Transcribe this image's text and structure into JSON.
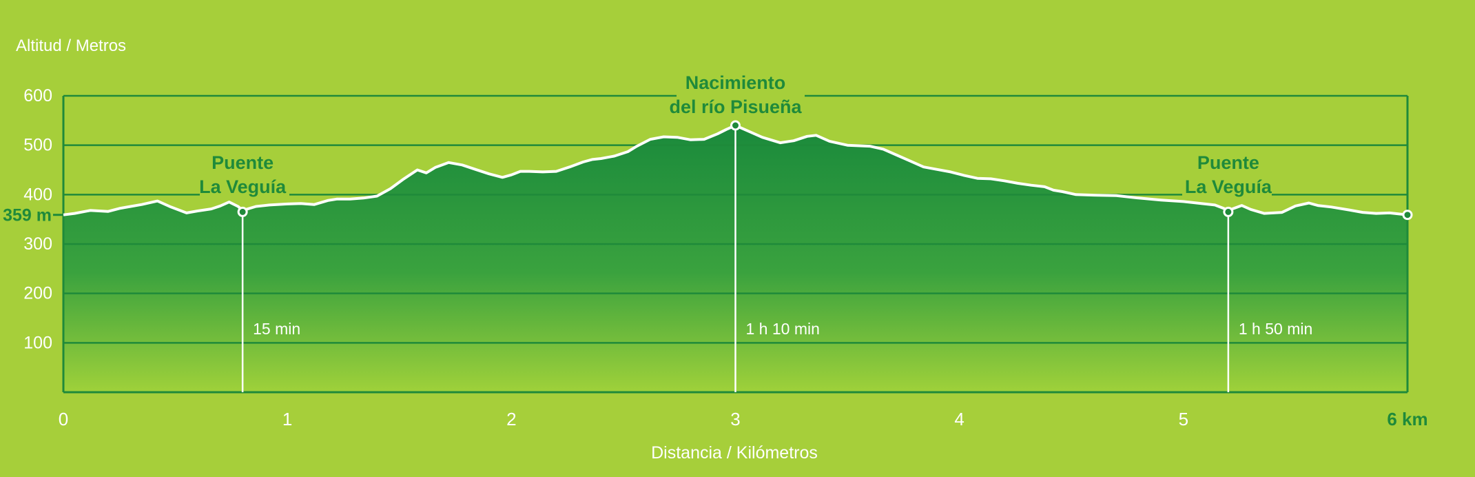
{
  "chart_data": {
    "type": "area",
    "ylabel": "Altitud / Metros",
    "xlabel": "Distancia / Kilómetros",
    "xlim": [
      0,
      6
    ],
    "ylim": [
      0,
      600
    ],
    "x_ticks": [
      "0",
      "1",
      "2",
      "3",
      "4",
      "5",
      "6 km"
    ],
    "y_ticks": [
      "100",
      "200",
      "300",
      "400",
      "500",
      "600"
    ],
    "start_label": "359 m",
    "grid": true,
    "colors": {
      "background": "#a6cf3a",
      "fill_top": "#1a8a3c",
      "fill_bottom": "#9fd13a",
      "grid": "#1f8a3a",
      "profile_line": "#ffffff"
    },
    "profile": {
      "x": [
        0,
        0.05,
        0.12,
        0.2,
        0.25,
        0.3,
        0.35,
        0.42,
        0.48,
        0.55,
        0.6,
        0.66,
        0.7,
        0.74,
        0.78,
        0.8,
        0.86,
        0.92,
        1.0,
        1.06,
        1.12,
        1.18,
        1.22,
        1.28,
        1.34,
        1.4,
        1.46,
        1.52,
        1.58,
        1.62,
        1.66,
        1.72,
        1.78,
        1.84,
        1.9,
        1.96,
        2.0,
        2.04,
        2.08,
        2.14,
        2.2,
        2.26,
        2.32,
        2.36,
        2.4,
        2.46,
        2.52,
        2.56,
        2.62,
        2.68,
        2.74,
        2.8,
        2.86,
        2.92,
        2.96,
        3.0,
        3.06,
        3.12,
        3.2,
        3.26,
        3.32,
        3.36,
        3.42,
        3.5,
        3.6,
        3.66,
        3.72,
        3.78,
        3.84,
        3.9,
        3.96,
        4.02,
        4.08,
        4.14,
        4.2,
        4.26,
        4.32,
        4.38,
        4.42,
        4.46,
        4.52,
        4.6,
        4.7,
        4.8,
        4.9,
        5.0,
        5.08,
        5.14,
        5.18,
        5.2,
        5.26,
        5.3,
        5.36,
        5.44,
        5.5,
        5.56,
        5.6,
        5.66,
        5.74,
        5.8,
        5.86,
        5.92,
        6.0
      ],
      "y": [
        359,
        362,
        368,
        366,
        372,
        376,
        380,
        387,
        375,
        363,
        367,
        371,
        377,
        385,
        376,
        368,
        376,
        379,
        381,
        382,
        380,
        388,
        391,
        391,
        393,
        397,
        412,
        432,
        450,
        444,
        455,
        465,
        460,
        451,
        442,
        435,
        440,
        447,
        447,
        446,
        447,
        456,
        466,
        471,
        473,
        478,
        487,
        498,
        512,
        517,
        516,
        511,
        512,
        523,
        532,
        540,
        528,
        516,
        505,
        509,
        518,
        520,
        508,
        500,
        498,
        492,
        480,
        468,
        456,
        451,
        446,
        439,
        433,
        432,
        428,
        423,
        419,
        416,
        409,
        406,
        400,
        399,
        398,
        393,
        389,
        386,
        382,
        379,
        372,
        368,
        378,
        370,
        362,
        364,
        377,
        383,
        378,
        375,
        369,
        364,
        362,
        363,
        359
      ]
    },
    "annotations": [
      {
        "name": "Puente La Veguía",
        "lines": [
          "Puente",
          "La Veguía"
        ],
        "x": 0.8,
        "y": 365,
        "time": "15 min"
      },
      {
        "name": "Nacimiento del río Pisueña",
        "lines": [
          "Nacimiento",
          "del  río Pisueña"
        ],
        "x": 3.0,
        "y": 540,
        "time": "1 h 10 min"
      },
      {
        "name": "Puente La Veguía",
        "lines": [
          "Puente",
          "La Veguía"
        ],
        "x": 5.2,
        "y": 365,
        "time": "1 h 50 min"
      }
    ]
  }
}
